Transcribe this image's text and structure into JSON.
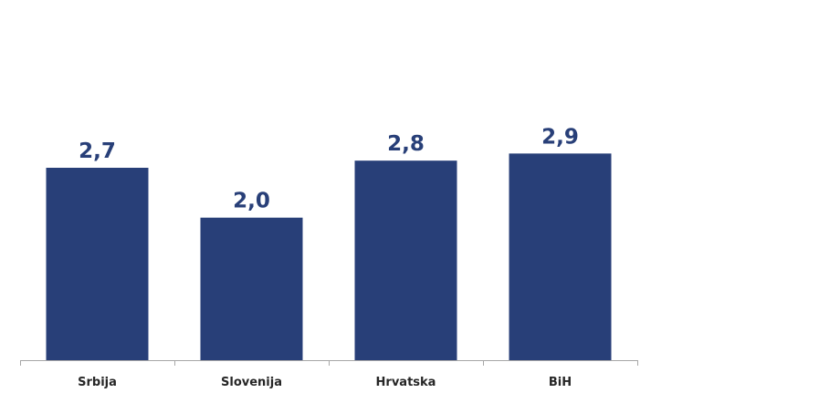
{
  "chart_data": {
    "type": "bar",
    "categories": [
      "Srbija",
      "Slovenija",
      "Hrvatska",
      "BiH"
    ],
    "values": [
      2.7,
      2.0,
      2.8,
      2.9
    ],
    "value_labels": [
      "2,7",
      "2,0",
      "2,8",
      "2,9"
    ],
    "title": "",
    "xlabel": "",
    "ylabel": "",
    "ylim": [
      0,
      3.5
    ],
    "grid": false,
    "legend": "none",
    "colors": {
      "bar": "#283f78",
      "value_label": "#283f78",
      "tick_label": "#262626",
      "axis": "#a6a6a6"
    }
  }
}
